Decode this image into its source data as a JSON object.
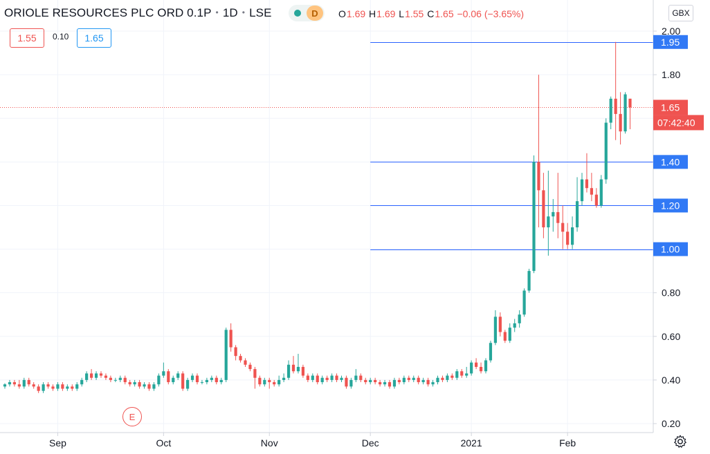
{
  "header": {
    "symbol": "ORIOLE RESOURCES PLC ORD 0.1P",
    "interval": "1D",
    "exchange": "LSE",
    "status_badge": "D",
    "ohlc": {
      "o_label": "O",
      "o": "1.69",
      "h_label": "H",
      "h": "1.69",
      "l_label": "L",
      "l": "1.55",
      "c_label": "C",
      "c": "1.65",
      "change": "−0.06 (−3.65%)"
    },
    "sell_price": "1.55",
    "spread": "0.10",
    "buy_price": "1.65",
    "currency": "GBX"
  },
  "earnings_marker": "E",
  "price_label": "1.65",
  "countdown": "07:42:40",
  "colors": {
    "up": "#26a69a",
    "down": "#ef5350",
    "hline": "#2962ff",
    "hline_label_bg": "#3179f5",
    "grid": "#f0f3fa"
  },
  "icons": {
    "settings": "gear-icon",
    "status": "market-status-dot-icon"
  },
  "chart_data": {
    "type": "candlestick",
    "ylim": [
      0.16,
      2.05
    ],
    "y_ticks": [
      "0.20",
      "0.40",
      "0.60",
      "0.80",
      "1.00",
      "1.20",
      "1.40",
      "1.60",
      "1.80",
      "2.00"
    ],
    "x_ticks": [
      {
        "label": "Sep",
        "i": 11
      },
      {
        "label": "Oct",
        "i": 33
      },
      {
        "label": "Nov",
        "i": 55
      },
      {
        "label": "Dec",
        "i": 76
      },
      {
        "label": "2021",
        "i": 97
      },
      {
        "label": "Feb",
        "i": 117
      }
    ],
    "horizontal_lines": [
      {
        "value": 1.95,
        "label": "1.95",
        "start_i": 76
      },
      {
        "value": 1.4,
        "label": "1.40",
        "start_i": 76
      },
      {
        "value": 1.2,
        "label": "1.20",
        "start_i": 76
      },
      {
        "value": 1.0,
        "label": "1.00",
        "start_i": 76
      }
    ],
    "last_price": 1.65,
    "candles": [
      [
        0.37,
        0.38,
        0.36,
        0.385
      ],
      [
        0.38,
        0.39,
        0.37,
        0.4
      ],
      [
        0.39,
        0.38,
        0.37,
        0.4
      ],
      [
        0.38,
        0.37,
        0.36,
        0.4
      ],
      [
        0.37,
        0.4,
        0.36,
        0.41
      ],
      [
        0.4,
        0.38,
        0.37,
        0.41
      ],
      [
        0.38,
        0.37,
        0.36,
        0.39
      ],
      [
        0.37,
        0.35,
        0.34,
        0.38
      ],
      [
        0.35,
        0.38,
        0.34,
        0.39
      ],
      [
        0.38,
        0.37,
        0.36,
        0.39
      ],
      [
        0.37,
        0.36,
        0.35,
        0.38
      ],
      [
        0.36,
        0.38,
        0.35,
        0.39
      ],
      [
        0.38,
        0.36,
        0.35,
        0.39
      ],
      [
        0.36,
        0.37,
        0.35,
        0.38
      ],
      [
        0.37,
        0.36,
        0.35,
        0.38
      ],
      [
        0.36,
        0.38,
        0.35,
        0.39
      ],
      [
        0.38,
        0.4,
        0.37,
        0.41
      ],
      [
        0.4,
        0.43,
        0.39,
        0.44
      ],
      [
        0.43,
        0.41,
        0.4,
        0.45
      ],
      [
        0.41,
        0.43,
        0.4,
        0.44
      ],
      [
        0.43,
        0.42,
        0.41,
        0.44
      ],
      [
        0.42,
        0.41,
        0.4,
        0.43
      ],
      [
        0.41,
        0.4,
        0.39,
        0.42
      ],
      [
        0.4,
        0.4,
        0.39,
        0.41
      ],
      [
        0.4,
        0.41,
        0.39,
        0.42
      ],
      [
        0.41,
        0.39,
        0.38,
        0.42
      ],
      [
        0.39,
        0.38,
        0.37,
        0.4
      ],
      [
        0.38,
        0.39,
        0.37,
        0.4
      ],
      [
        0.39,
        0.37,
        0.36,
        0.4
      ],
      [
        0.37,
        0.38,
        0.36,
        0.39
      ],
      [
        0.38,
        0.36,
        0.35,
        0.39
      ],
      [
        0.36,
        0.38,
        0.35,
        0.39
      ],
      [
        0.38,
        0.42,
        0.37,
        0.43
      ],
      [
        0.42,
        0.44,
        0.41,
        0.48
      ],
      [
        0.44,
        0.39,
        0.38,
        0.45
      ],
      [
        0.39,
        0.41,
        0.38,
        0.42
      ],
      [
        0.41,
        0.43,
        0.4,
        0.44
      ],
      [
        0.43,
        0.36,
        0.35,
        0.44
      ],
      [
        0.36,
        0.4,
        0.35,
        0.41
      ],
      [
        0.4,
        0.42,
        0.39,
        0.43
      ],
      [
        0.42,
        0.39,
        0.38,
        0.43
      ],
      [
        0.39,
        0.39,
        0.38,
        0.4
      ],
      [
        0.39,
        0.4,
        0.38,
        0.41
      ],
      [
        0.4,
        0.41,
        0.39,
        0.42
      ],
      [
        0.41,
        0.39,
        0.38,
        0.42
      ],
      [
        0.39,
        0.4,
        0.38,
        0.41
      ],
      [
        0.4,
        0.63,
        0.39,
        0.64
      ],
      [
        0.63,
        0.55,
        0.53,
        0.66
      ],
      [
        0.55,
        0.51,
        0.49,
        0.56
      ],
      [
        0.51,
        0.49,
        0.48,
        0.52
      ],
      [
        0.49,
        0.47,
        0.46,
        0.5
      ],
      [
        0.47,
        0.45,
        0.44,
        0.48
      ],
      [
        0.45,
        0.41,
        0.36,
        0.46
      ],
      [
        0.41,
        0.38,
        0.37,
        0.42
      ],
      [
        0.38,
        0.4,
        0.37,
        0.41
      ],
      [
        0.4,
        0.39,
        0.36,
        0.41
      ],
      [
        0.39,
        0.38,
        0.37,
        0.4
      ],
      [
        0.38,
        0.4,
        0.37,
        0.42
      ],
      [
        0.4,
        0.41,
        0.39,
        0.43
      ],
      [
        0.41,
        0.47,
        0.4,
        0.49
      ],
      [
        0.47,
        0.44,
        0.43,
        0.51
      ],
      [
        0.44,
        0.46,
        0.43,
        0.52
      ],
      [
        0.46,
        0.42,
        0.41,
        0.47
      ],
      [
        0.42,
        0.4,
        0.39,
        0.43
      ],
      [
        0.4,
        0.42,
        0.39,
        0.43
      ],
      [
        0.42,
        0.39,
        0.38,
        0.43
      ],
      [
        0.39,
        0.41,
        0.38,
        0.42
      ],
      [
        0.41,
        0.4,
        0.39,
        0.42
      ],
      [
        0.4,
        0.42,
        0.39,
        0.43
      ],
      [
        0.42,
        0.4,
        0.39,
        0.43
      ],
      [
        0.4,
        0.41,
        0.39,
        0.42
      ],
      [
        0.41,
        0.37,
        0.36,
        0.42
      ],
      [
        0.37,
        0.4,
        0.36,
        0.41
      ],
      [
        0.4,
        0.42,
        0.39,
        0.45
      ],
      [
        0.42,
        0.4,
        0.39,
        0.43
      ],
      [
        0.4,
        0.39,
        0.38,
        0.41
      ],
      [
        0.39,
        0.4,
        0.38,
        0.41
      ],
      [
        0.4,
        0.39,
        0.38,
        0.41
      ],
      [
        0.39,
        0.38,
        0.37,
        0.4
      ],
      [
        0.38,
        0.39,
        0.37,
        0.4
      ],
      [
        0.39,
        0.37,
        0.36,
        0.4
      ],
      [
        0.37,
        0.4,
        0.36,
        0.41
      ],
      [
        0.4,
        0.39,
        0.38,
        0.41
      ],
      [
        0.39,
        0.41,
        0.38,
        0.42
      ],
      [
        0.41,
        0.4,
        0.39,
        0.42
      ],
      [
        0.4,
        0.41,
        0.39,
        0.42
      ],
      [
        0.41,
        0.39,
        0.38,
        0.42
      ],
      [
        0.39,
        0.4,
        0.38,
        0.41
      ],
      [
        0.4,
        0.38,
        0.37,
        0.41
      ],
      [
        0.38,
        0.39,
        0.37,
        0.4
      ],
      [
        0.39,
        0.41,
        0.38,
        0.42
      ],
      [
        0.41,
        0.4,
        0.39,
        0.42
      ],
      [
        0.4,
        0.42,
        0.39,
        0.43
      ],
      [
        0.42,
        0.41,
        0.4,
        0.43
      ],
      [
        0.41,
        0.44,
        0.4,
        0.45
      ],
      [
        0.44,
        0.42,
        0.41,
        0.45
      ],
      [
        0.42,
        0.43,
        0.41,
        0.46
      ],
      [
        0.43,
        0.48,
        0.42,
        0.49
      ],
      [
        0.48,
        0.46,
        0.45,
        0.5
      ],
      [
        0.46,
        0.44,
        0.43,
        0.48
      ],
      [
        0.44,
        0.49,
        0.43,
        0.5
      ],
      [
        0.49,
        0.57,
        0.48,
        0.58
      ],
      [
        0.57,
        0.69,
        0.56,
        0.72
      ],
      [
        0.69,
        0.62,
        0.6,
        0.71
      ],
      [
        0.62,
        0.58,
        0.57,
        0.63
      ],
      [
        0.58,
        0.64,
        0.57,
        0.66
      ],
      [
        0.64,
        0.66,
        0.62,
        0.68
      ],
      [
        0.66,
        0.7,
        0.64,
        0.72
      ],
      [
        0.7,
        0.81,
        0.69,
        0.82
      ],
      [
        0.81,
        0.9,
        0.8,
        0.91
      ],
      [
        0.9,
        1.4,
        0.89,
        1.43
      ],
      [
        1.4,
        1.27,
        1.1,
        1.8
      ],
      [
        1.27,
        1.1,
        1.05,
        1.35
      ],
      [
        1.1,
        1.15,
        0.97,
        1.36
      ],
      [
        1.15,
        1.17,
        1.08,
        1.23
      ],
      [
        1.17,
        1.12,
        1.05,
        1.35
      ],
      [
        1.12,
        1.08,
        1.0,
        1.2
      ],
      [
        1.08,
        1.02,
        1.0,
        1.12
      ],
      [
        1.02,
        1.1,
        1.0,
        1.15
      ],
      [
        1.1,
        1.22,
        1.08,
        1.33
      ],
      [
        1.22,
        1.32,
        1.2,
        1.35
      ],
      [
        1.32,
        1.28,
        1.26,
        1.44
      ],
      [
        1.28,
        1.25,
        1.22,
        1.35
      ],
      [
        1.25,
        1.2,
        1.19,
        1.28
      ],
      [
        1.2,
        1.32,
        1.19,
        1.34
      ],
      [
        1.32,
        1.58,
        1.3,
        1.6
      ],
      [
        1.58,
        1.69,
        1.55,
        1.7
      ],
      [
        1.69,
        1.62,
        1.5,
        1.95
      ],
      [
        1.62,
        1.54,
        1.48,
        1.72
      ],
      [
        1.54,
        1.71,
        1.53,
        1.72
      ],
      [
        1.69,
        1.65,
        1.55,
        1.69
      ]
    ]
  }
}
